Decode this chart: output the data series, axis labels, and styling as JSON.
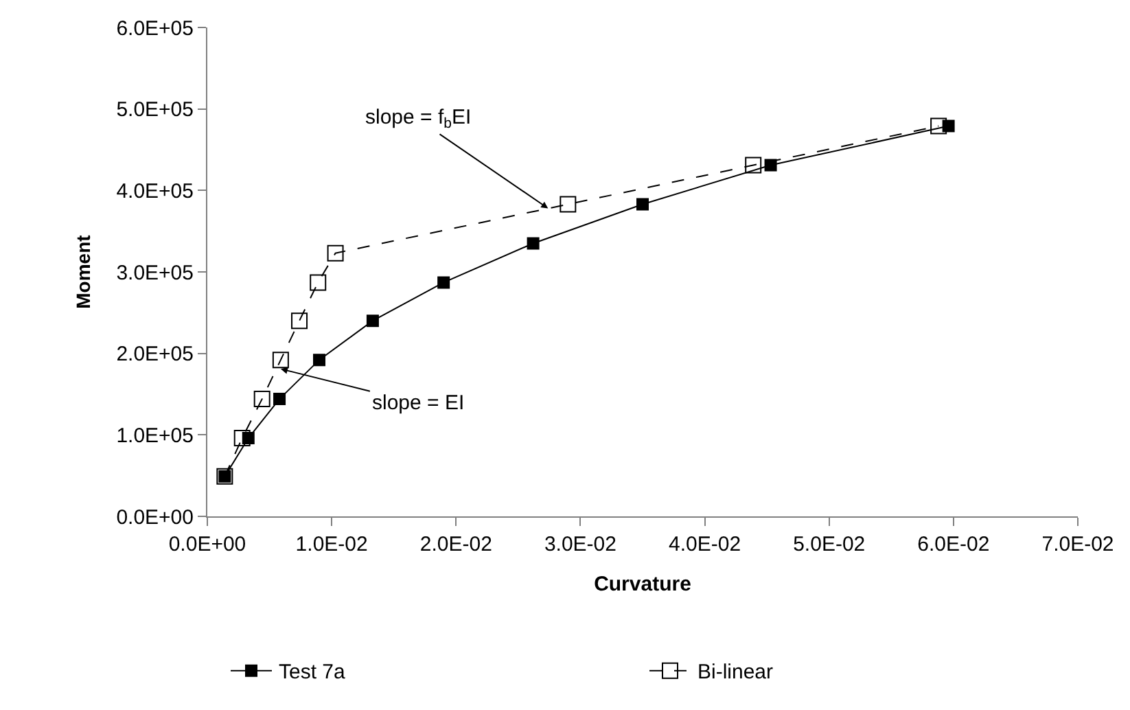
{
  "chart_data": {
    "type": "line",
    "xlabel": "Curvature",
    "ylabel": "Moment",
    "xlim": [
      0,
      0.07
    ],
    "xticks": [
      {
        "value": 0,
        "label": "0.0E+00"
      },
      {
        "value": 0.01,
        "label": "1.0E-02"
      },
      {
        "value": 0.02,
        "label": "2.0E-02"
      },
      {
        "value": 0.03,
        "label": "3.0E-02"
      },
      {
        "value": 0.04,
        "label": "4.0E-02"
      },
      {
        "value": 0.05,
        "label": "5.0E-02"
      },
      {
        "value": 0.06,
        "label": "6.0E-02"
      },
      {
        "value": 0.07,
        "label": "7.0E-02"
      }
    ],
    "ylim": [
      0,
      600000
    ],
    "yticks": [
      {
        "value": 0,
        "label": "0.0E+00"
      },
      {
        "value": 100000,
        "label": "1.0E+05"
      },
      {
        "value": 200000,
        "label": "2.0E+05"
      },
      {
        "value": 300000,
        "label": "3.0E+05"
      },
      {
        "value": 400000,
        "label": "4.0E+05"
      },
      {
        "value": 500000,
        "label": "5.0E+05"
      },
      {
        "value": 600000,
        "label": "6.0E+05"
      }
    ],
    "legend": "bottom",
    "series": [
      {
        "name": "Test 7a",
        "color": "#000000",
        "marker": "square",
        "line_style": "solid",
        "x": [
          0.0014,
          0.0033,
          0.0058,
          0.009,
          0.0133,
          0.019,
          0.0262,
          0.035,
          0.0453,
          0.0596
        ],
        "values": [
          49000,
          96000,
          144000,
          192000,
          240000,
          287000,
          335000,
          383000,
          431000,
          479000
        ]
      },
      {
        "name": "Bi-linear",
        "color": "#000000",
        "marker": "square-open",
        "line_style": "dashed",
        "x": [
          0.0014,
          0.0028,
          0.0044,
          0.0059,
          0.0074,
          0.0089,
          0.0103,
          0.029,
          0.0439,
          0.0588
        ],
        "values": [
          49000,
          96000,
          144000,
          192000,
          240000,
          287000,
          323000,
          383000,
          431000,
          479000
        ]
      }
    ],
    "annotations": [
      {
        "text": "slope = f$_{b}$EI",
        "x": 0.0274,
        "y": 378000
      },
      {
        "text": "slope = EI",
        "x": 0.0059,
        "y": 181000
      }
    ]
  }
}
